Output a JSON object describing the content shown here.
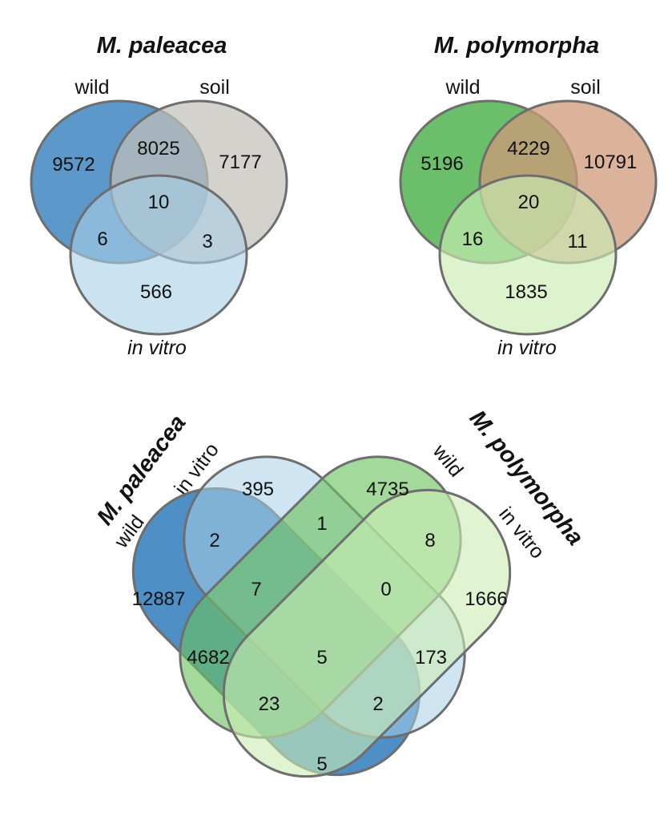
{
  "colors": {
    "mpal_wild": "#4a8dc4",
    "mpal_soil": "#c4c0b9",
    "mpal_invitro": "#a9cfe8",
    "mpoly_wild": "#5cb85a",
    "mpoly_soil": "#cf9878",
    "mpoly_invitro": "#cbedb4",
    "four_mpal_wild": "#3f86c0",
    "four_mpal_invitro": "#a9cfe8",
    "four_mpoly_wild": "#6cc160",
    "four_mpoly_invitro": "#cbedb4",
    "outline": "#6e6e6e"
  },
  "paleacea": {
    "title": "M. paleacea",
    "labels": {
      "wild": "wild",
      "soil": "soil",
      "invitro": "in vitro"
    },
    "counts": {
      "wild_only": "9572",
      "wild_soil": "8025",
      "soil_only": "7177",
      "all_three": "10",
      "wild_invitro": "6",
      "soil_invitro": "3",
      "invitro_only": "566"
    }
  },
  "polymorpha": {
    "title": "M. polymorpha",
    "labels": {
      "wild": "wild",
      "soil": "soil",
      "invitro": "in vitro"
    },
    "counts": {
      "wild_only": "5196",
      "wild_soil": "4229",
      "soil_only": "10791",
      "all_three": "20",
      "wild_invitro": "16",
      "soil_invitro": "11",
      "invitro_only": "1835"
    }
  },
  "combined": {
    "title_left": "M. paleacea",
    "title_right": "M. polymorpha",
    "labels": {
      "mpal_wild": "wild",
      "mpal_invitro": "in vitro",
      "mpoly_wild": "wild",
      "mpoly_invitro": "in vitro"
    },
    "counts": [
      {
        "key": "c395",
        "value": "395"
      },
      {
        "key": "c4735",
        "value": "4735"
      },
      {
        "key": "c1",
        "value": "1"
      },
      {
        "key": "c2a",
        "value": "2"
      },
      {
        "key": "c8",
        "value": "8"
      },
      {
        "key": "c7",
        "value": "7"
      },
      {
        "key": "c0",
        "value": "0"
      },
      {
        "key": "c12887",
        "value": "12887"
      },
      {
        "key": "c1666",
        "value": "1666"
      },
      {
        "key": "c4682",
        "value": "4682"
      },
      {
        "key": "c5a",
        "value": "5"
      },
      {
        "key": "c173",
        "value": "173"
      },
      {
        "key": "c23",
        "value": "23"
      },
      {
        "key": "c2b",
        "value": "2"
      },
      {
        "key": "c5b",
        "value": "5"
      }
    ]
  }
}
